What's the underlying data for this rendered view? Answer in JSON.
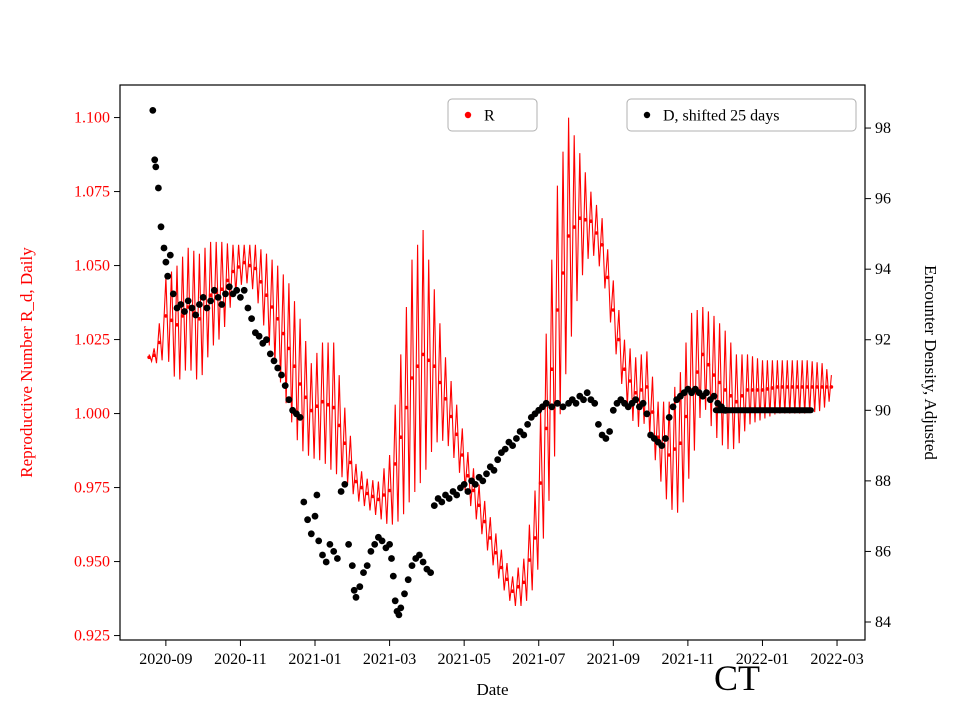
{
  "figure": {
    "background": "#ffffff",
    "annotation": "CT"
  },
  "chart_data": {
    "type": "line",
    "title": "",
    "xlabel": "Date",
    "ylabel_left": "Reproductive Number R_d, Daily",
    "ylabel_right": "Encounter Density, Adjusted",
    "annotation": "CT",
    "colors": {
      "r_series": "#ff0000",
      "d_series": "#000000",
      "spine": "#000000",
      "legend_border": "#b0b0b0"
    },
    "x_range": [
      -1.23,
      18.75
    ],
    "x_ticks": [
      {
        "pos": 0,
        "label": "2020-09"
      },
      {
        "pos": 2,
        "label": "2020-11"
      },
      {
        "pos": 4,
        "label": "2021-01"
      },
      {
        "pos": 6,
        "label": "2021-03"
      },
      {
        "pos": 8,
        "label": "2021-05"
      },
      {
        "pos": 10,
        "label": "2021-07"
      },
      {
        "pos": 12,
        "label": "2021-09"
      },
      {
        "pos": 14,
        "label": "2021-11"
      },
      {
        "pos": 16,
        "label": "2022-01"
      },
      {
        "pos": 18,
        "label": "2022-03"
      }
    ],
    "y_left_range": [
      0.9235,
      1.111
    ],
    "y_left_ticks": [
      "0.925",
      "0.950",
      "0.975",
      "1.000",
      "1.025",
      "1.050",
      "1.075",
      "1.100"
    ],
    "y_right_range": [
      83.49,
      99.22
    ],
    "y_right_ticks": [
      "84",
      "86",
      "88",
      "90",
      "92",
      "94",
      "96",
      "98"
    ],
    "legend": [
      {
        "label": "R",
        "color": "#ff0000"
      },
      {
        "label": "D, shifted 25 days",
        "color": "#000000"
      }
    ],
    "series": [
      {
        "name": "R",
        "axis": "left",
        "style": "noisy-line-with-dots",
        "color": "#ff0000",
        "trend": [
          [
            -0.45,
            1.019,
            0.001
          ],
          [
            -0.25,
            1.02,
            0.003
          ],
          [
            -0.1,
            1.028,
            0.01
          ],
          [
            0.0,
            1.033,
            0.013
          ],
          [
            0.3,
            1.03,
            0.02
          ],
          [
            0.6,
            1.036,
            0.02
          ],
          [
            0.9,
            1.032,
            0.022
          ],
          [
            1.2,
            1.04,
            0.018
          ],
          [
            1.5,
            1.042,
            0.016
          ],
          [
            1.8,
            1.048,
            0.009
          ],
          [
            2.1,
            1.051,
            0.006
          ],
          [
            2.4,
            1.049,
            0.008
          ],
          [
            2.7,
            1.04,
            0.014
          ],
          [
            3.0,
            1.032,
            0.018
          ],
          [
            3.3,
            1.022,
            0.022
          ],
          [
            3.6,
            1.01,
            0.022
          ],
          [
            3.9,
            1.001,
            0.016
          ],
          [
            4.2,
            1.004,
            0.02
          ],
          [
            4.5,
            1.002,
            0.022
          ],
          [
            4.8,
            0.99,
            0.012
          ],
          [
            5.1,
            0.977,
            0.006
          ],
          [
            5.4,
            0.973,
            0.005
          ],
          [
            5.7,
            0.971,
            0.006
          ],
          [
            6.0,
            0.974,
            0.012
          ],
          [
            6.3,
            0.992,
            0.028
          ],
          [
            6.6,
            1.012,
            0.04
          ],
          [
            6.9,
            1.02,
            0.042
          ],
          [
            7.2,
            1.016,
            0.026
          ],
          [
            7.5,
            1.005,
            0.014
          ],
          [
            7.8,
            0.993,
            0.01
          ],
          [
            8.1,
            0.979,
            0.008
          ],
          [
            8.4,
            0.969,
            0.007
          ],
          [
            8.7,
            0.958,
            0.007
          ],
          [
            9.0,
            0.948,
            0.006
          ],
          [
            9.3,
            0.94,
            0.005
          ],
          [
            9.6,
            0.943,
            0.008
          ],
          [
            9.9,
            0.958,
            0.016
          ],
          [
            10.2,
            0.995,
            0.032
          ],
          [
            10.5,
            1.035,
            0.042
          ],
          [
            10.8,
            1.06,
            0.04
          ],
          [
            11.1,
            1.066,
            0.022
          ],
          [
            11.4,
            1.065,
            0.01
          ],
          [
            11.7,
            1.057,
            0.009
          ],
          [
            12.0,
            1.035,
            0.01
          ],
          [
            12.3,
            1.015,
            0.01
          ],
          [
            12.6,
            1.007,
            0.012
          ],
          [
            12.9,
            1.009,
            0.012
          ],
          [
            13.2,
            0.992,
            0.012
          ],
          [
            13.5,
            0.986,
            0.018
          ],
          [
            13.8,
            0.99,
            0.024
          ],
          [
            14.1,
            1.008,
            0.026
          ],
          [
            14.4,
            1.02,
            0.016
          ],
          [
            14.7,
            1.013,
            0.02
          ],
          [
            15.0,
            1.008,
            0.02
          ],
          [
            15.3,
            1.004,
            0.016
          ],
          [
            15.6,
            1.008,
            0.012
          ],
          [
            16.0,
            1.008,
            0.01
          ],
          [
            16.4,
            1.009,
            0.009
          ],
          [
            16.8,
            1.009,
            0.009
          ],
          [
            17.2,
            1.009,
            0.009
          ],
          [
            17.6,
            1.009,
            0.008
          ],
          [
            17.85,
            1.009,
            0.004
          ]
        ]
      },
      {
        "name": "D, shifted 25 days",
        "axis": "right",
        "style": "scatter",
        "color": "#000000",
        "points": [
          [
            -0.35,
            98.5
          ],
          [
            -0.3,
            97.1
          ],
          [
            -0.27,
            96.9
          ],
          [
            -0.2,
            96.3
          ],
          [
            -0.13,
            95.2
          ],
          [
            -0.05,
            94.6
          ],
          [
            0.0,
            94.2
          ],
          [
            0.05,
            93.8
          ],
          [
            0.12,
            94.4
          ],
          [
            0.2,
            93.3
          ],
          [
            0.3,
            92.9
          ],
          [
            0.4,
            93.0
          ],
          [
            0.5,
            92.8
          ],
          [
            0.6,
            93.1
          ],
          [
            0.7,
            92.9
          ],
          [
            0.8,
            92.7
          ],
          [
            0.9,
            93.0
          ],
          [
            1.0,
            93.2
          ],
          [
            1.1,
            92.9
          ],
          [
            1.2,
            93.1
          ],
          [
            1.3,
            93.4
          ],
          [
            1.4,
            93.2
          ],
          [
            1.5,
            93.0
          ],
          [
            1.6,
            93.3
          ],
          [
            1.7,
            93.5
          ],
          [
            1.8,
            93.3
          ],
          [
            1.9,
            93.4
          ],
          [
            2.0,
            93.2
          ],
          [
            2.1,
            93.4
          ],
          [
            2.2,
            92.9
          ],
          [
            2.3,
            92.6
          ],
          [
            2.4,
            92.2
          ],
          [
            2.5,
            92.1
          ],
          [
            2.6,
            91.9
          ],
          [
            2.7,
            92.0
          ],
          [
            2.8,
            91.6
          ],
          [
            2.9,
            91.4
          ],
          [
            3.0,
            91.2
          ],
          [
            3.1,
            91.0
          ],
          [
            3.2,
            90.7
          ],
          [
            3.3,
            90.3
          ],
          [
            3.4,
            90.0
          ],
          [
            3.5,
            89.9
          ],
          [
            3.6,
            89.8
          ],
          [
            3.7,
            87.4
          ],
          [
            3.8,
            86.9
          ],
          [
            3.9,
            86.5
          ],
          [
            4.0,
            87.0
          ],
          [
            4.05,
            87.6
          ],
          [
            4.1,
            86.3
          ],
          [
            4.2,
            85.9
          ],
          [
            4.3,
            85.7
          ],
          [
            4.4,
            86.2
          ],
          [
            4.5,
            86.0
          ],
          [
            4.6,
            85.8
          ],
          [
            4.7,
            87.7
          ],
          [
            4.8,
            87.9
          ],
          [
            4.9,
            86.2
          ],
          [
            5.0,
            85.6
          ],
          [
            5.05,
            84.9
          ],
          [
            5.1,
            84.7
          ],
          [
            5.2,
            85.0
          ],
          [
            5.3,
            85.4
          ],
          [
            5.4,
            85.6
          ],
          [
            5.5,
            86.0
          ],
          [
            5.6,
            86.2
          ],
          [
            5.7,
            86.4
          ],
          [
            5.8,
            86.3
          ],
          [
            5.9,
            86.1
          ],
          [
            6.0,
            86.2
          ],
          [
            6.05,
            85.8
          ],
          [
            6.1,
            85.3
          ],
          [
            6.15,
            84.6
          ],
          [
            6.2,
            84.3
          ],
          [
            6.25,
            84.2
          ],
          [
            6.3,
            84.4
          ],
          [
            6.4,
            84.8
          ],
          [
            6.5,
            85.2
          ],
          [
            6.6,
            85.6
          ],
          [
            6.7,
            85.8
          ],
          [
            6.8,
            85.9
          ],
          [
            6.9,
            85.7
          ],
          [
            7.0,
            85.5
          ],
          [
            7.1,
            85.4
          ],
          [
            7.2,
            87.3
          ],
          [
            7.3,
            87.5
          ],
          [
            7.4,
            87.4
          ],
          [
            7.5,
            87.6
          ],
          [
            7.6,
            87.5
          ],
          [
            7.7,
            87.7
          ],
          [
            7.8,
            87.6
          ],
          [
            7.9,
            87.8
          ],
          [
            8.0,
            87.9
          ],
          [
            8.1,
            87.7
          ],
          [
            8.2,
            88.0
          ],
          [
            8.3,
            87.9
          ],
          [
            8.4,
            88.1
          ],
          [
            8.5,
            88.0
          ],
          [
            8.6,
            88.2
          ],
          [
            8.7,
            88.4
          ],
          [
            8.8,
            88.3
          ],
          [
            8.9,
            88.6
          ],
          [
            9.0,
            88.8
          ],
          [
            9.1,
            88.9
          ],
          [
            9.2,
            89.1
          ],
          [
            9.3,
            89.0
          ],
          [
            9.4,
            89.2
          ],
          [
            9.5,
            89.4
          ],
          [
            9.6,
            89.3
          ],
          [
            9.7,
            89.6
          ],
          [
            9.8,
            89.8
          ],
          [
            9.9,
            89.9
          ],
          [
            10.0,
            90.0
          ],
          [
            10.1,
            90.1
          ],
          [
            10.2,
            90.2
          ],
          [
            10.35,
            90.1
          ],
          [
            10.5,
            90.2
          ],
          [
            10.65,
            90.1
          ],
          [
            10.8,
            90.2
          ],
          [
            10.9,
            90.3
          ],
          [
            11.0,
            90.2
          ],
          [
            11.1,
            90.4
          ],
          [
            11.2,
            90.3
          ],
          [
            11.3,
            90.5
          ],
          [
            11.4,
            90.3
          ],
          [
            11.5,
            90.2
          ],
          [
            11.6,
            89.6
          ],
          [
            11.7,
            89.3
          ],
          [
            11.8,
            89.2
          ],
          [
            11.9,
            89.4
          ],
          [
            12.0,
            90.0
          ],
          [
            12.1,
            90.2
          ],
          [
            12.2,
            90.3
          ],
          [
            12.3,
            90.2
          ],
          [
            12.4,
            90.1
          ],
          [
            12.5,
            90.2
          ],
          [
            12.6,
            90.3
          ],
          [
            12.7,
            90.1
          ],
          [
            12.8,
            90.2
          ],
          [
            12.9,
            89.9
          ],
          [
            13.0,
            89.3
          ],
          [
            13.1,
            89.2
          ],
          [
            13.2,
            89.1
          ],
          [
            13.3,
            89.0
          ],
          [
            13.4,
            89.2
          ],
          [
            13.5,
            89.8
          ],
          [
            13.6,
            90.1
          ],
          [
            13.7,
            90.3
          ],
          [
            13.8,
            90.4
          ],
          [
            13.9,
            90.5
          ],
          [
            14.0,
            90.6
          ],
          [
            14.1,
            90.5
          ],
          [
            14.2,
            90.6
          ],
          [
            14.3,
            90.5
          ],
          [
            14.4,
            90.4
          ],
          [
            14.5,
            90.5
          ],
          [
            14.6,
            90.3
          ],
          [
            14.7,
            90.4
          ],
          [
            14.8,
            90.2
          ],
          [
            14.9,
            90.1
          ],
          [
            15.0,
            90.0
          ]
        ],
        "flat_segment": {
          "x1": 14.75,
          "x2": 17.3,
          "y": 90.0
        }
      }
    ]
  }
}
